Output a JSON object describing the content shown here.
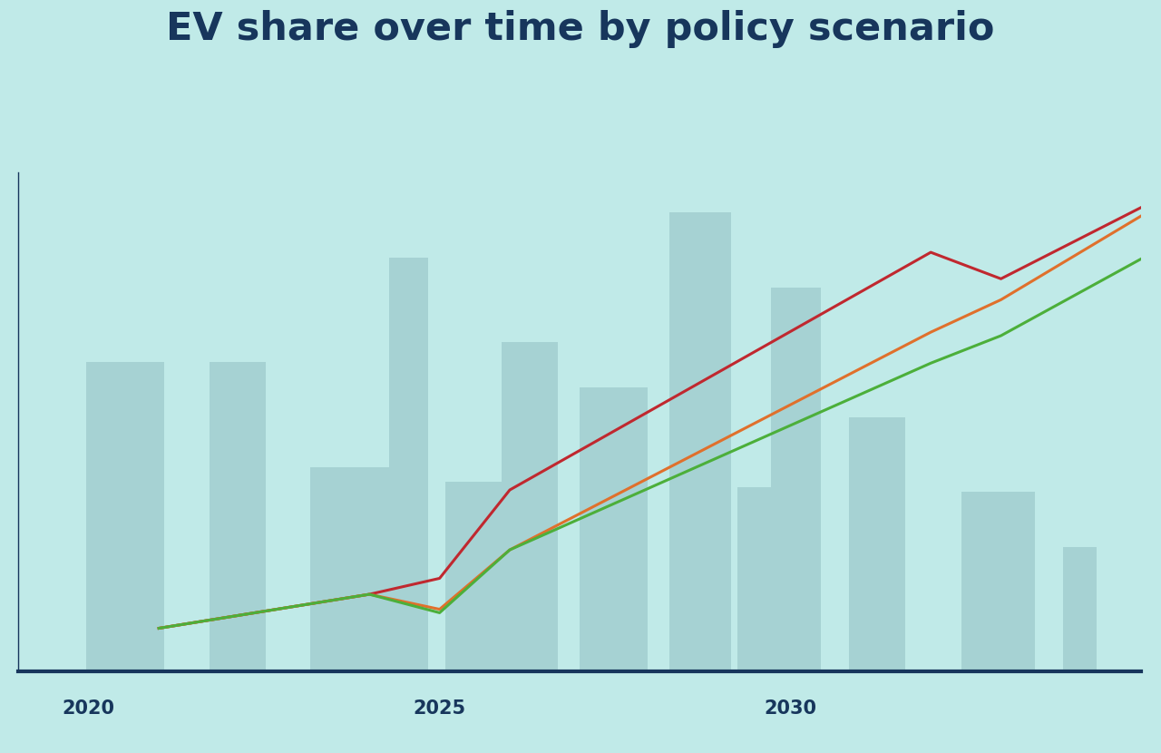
{
  "chart_data": {
    "type": "line",
    "title": "EV share over time by policy scenario",
    "x": [
      2021,
      2024,
      2025,
      2026,
      2032,
      2033,
      2035
    ],
    "series": [
      {
        "color": "#c0282f",
        "values": [
          8.7,
          15.5,
          18.7,
          36.4,
          84.0,
          78.7,
          93.0
        ]
      },
      {
        "color": "#e0702c",
        "values": [
          8.7,
          15.5,
          12.5,
          24.4,
          68.0,
          74.5,
          91.3
        ]
      },
      {
        "color": "#4caf3a",
        "values": [
          8.7,
          15.5,
          11.8,
          24.4,
          61.8,
          67.3,
          82.7
        ]
      }
    ],
    "xlim": [
      2019,
      2035
    ],
    "xticks": [
      2020,
      2025,
      2030
    ],
    "ylim": [
      0,
      100
    ],
    "yticks": [],
    "grid": false,
    "tick_labels": "x"
  }
}
